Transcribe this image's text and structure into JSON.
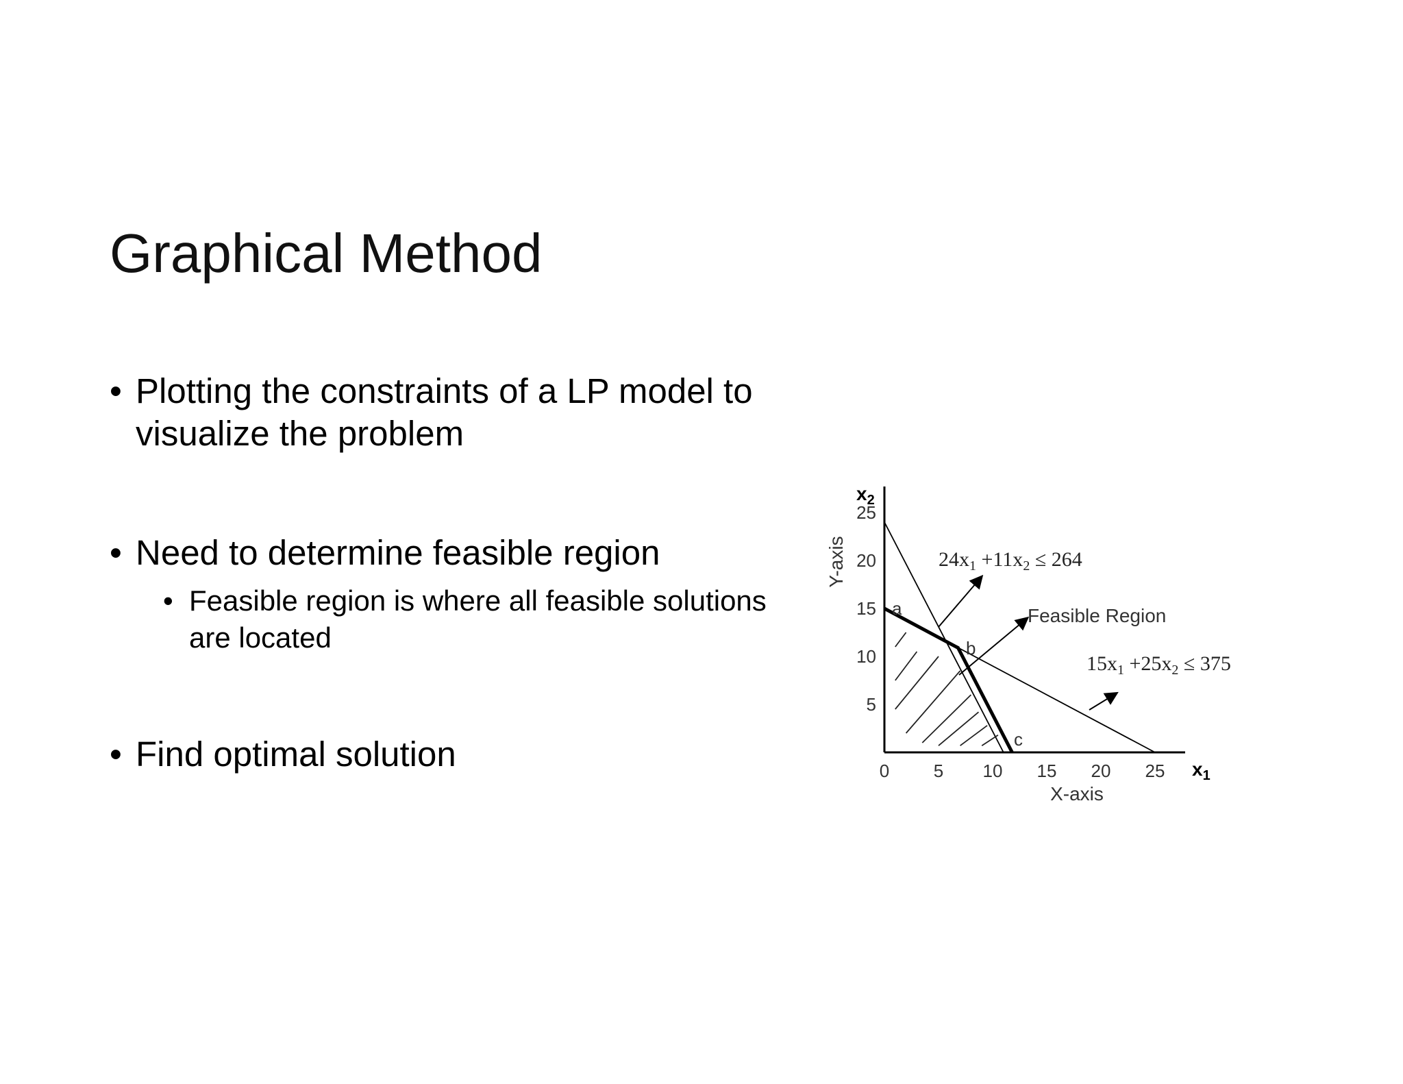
{
  "slide": {
    "title": "Graphical Method",
    "bullets": [
      "Plotting the constraints of a LP model to visualize the problem",
      "Need to determine feasible region",
      "Find optimal solution"
    ],
    "sub_bullets": [
      "Feasible region is where all feasible solutions are located"
    ]
  },
  "diagram": {
    "x_axis_var": "x",
    "x_axis_sub": "1",
    "y_axis_var": "x",
    "y_axis_sub": "2",
    "x_label": "X-axis",
    "y_label": "Y-axis",
    "x_ticks": [
      "0",
      "5",
      "10",
      "15",
      "20",
      "25"
    ],
    "y_ticks": [
      "5",
      "10",
      "15",
      "20",
      "25"
    ],
    "point_labels": [
      "a",
      "b",
      "c"
    ],
    "constraint1": {
      "coef1": "24x",
      "sub1": "1",
      "coef2": " +11x",
      "sub2": "2",
      "rhs": " ≤ 264"
    },
    "constraint2": {
      "coef1": "15x",
      "sub1": "1",
      "coef2": " +25x",
      "sub2": "2",
      "rhs": " ≤ 375"
    },
    "feasible_label": "Feasible Region"
  }
}
